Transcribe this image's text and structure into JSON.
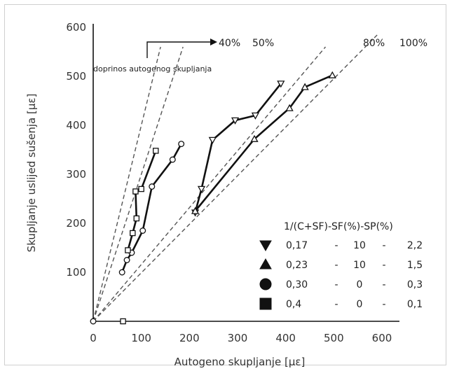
{
  "chart_data": {
    "type": "scatter",
    "xlabel": "Autogeno skupljanje [με]",
    "ylabel": "Skupljanje uslijed sušenja [με]",
    "xlim": [
      0,
      600
    ],
    "ylim": [
      0,
      600
    ],
    "xticks": [
      "0",
      "100",
      "200",
      "300",
      "400",
      "500",
      "600"
    ],
    "yticks": [
      "100",
      "200",
      "300",
      "400",
      "500",
      "600"
    ],
    "grid": false,
    "reference_lines": [
      {
        "label": "40%",
        "slope": 4.0
      },
      {
        "label": "50%",
        "slope": 3.0
      },
      {
        "label": "80%",
        "slope": 1.16
      },
      {
        "label": "100%",
        "slope": 1.0
      }
    ],
    "annotation": "doprinos autogenog skupljanja",
    "legend": {
      "title": "1/(C+SF)-SF(%)-SP(%)",
      "placement": "bottom-right",
      "entries": [
        {
          "marker": "triangle-down",
          "ratio": "0,17",
          "sf": "10",
          "sp": "2,2"
        },
        {
          "marker": "triangle-up",
          "ratio": "0,23",
          "sf": "10",
          "sp": "1,5"
        },
        {
          "marker": "circle",
          "ratio": "0,30",
          "sf": "0",
          "sp": "0,3"
        },
        {
          "marker": "square",
          "ratio": "0,4",
          "sf": "0",
          "sp": "0,1"
        }
      ]
    },
    "dash_separator": "-",
    "series": [
      {
        "marker": "triangle-down",
        "connected": true,
        "points": [
          [
            212,
            222
          ],
          [
            225,
            270
          ],
          [
            248,
            370
          ],
          [
            295,
            410
          ],
          [
            337,
            420
          ],
          [
            390,
            485
          ]
        ]
      },
      {
        "marker": "triangle-up",
        "connected": true,
        "points": [
          [
            212,
            225
          ],
          [
            335,
            372
          ],
          [
            408,
            435
          ],
          [
            440,
            478
          ],
          [
            497,
            502
          ]
        ]
      },
      {
        "marker": "circle",
        "connected": true,
        "points": [
          [
            60,
            100
          ],
          [
            70,
            125
          ],
          [
            80,
            140
          ],
          [
            103,
            185
          ],
          [
            122,
            275
          ],
          [
            165,
            330
          ],
          [
            183,
            362
          ]
        ]
      },
      {
        "marker": "square",
        "connected": true,
        "points": [
          [
            72,
            145
          ],
          [
            82,
            180
          ],
          [
            90,
            210
          ],
          [
            88,
            265
          ],
          [
            100,
            270
          ],
          [
            130,
            348
          ]
        ]
      },
      {
        "marker": "square",
        "connected": false,
        "points": [
          [
            62,
            0
          ]
        ]
      },
      {
        "marker": "circle",
        "connected": false,
        "points": [
          [
            0,
            0
          ]
        ]
      }
    ]
  }
}
